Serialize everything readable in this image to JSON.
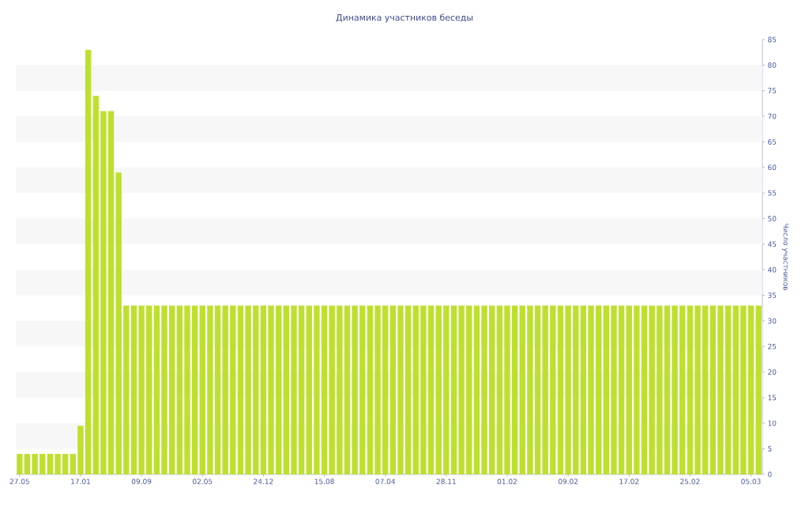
{
  "chart_data": {
    "type": "bar",
    "title": "Динамика участников беседы",
    "ylabel": "Число участников",
    "categories": [
      "27.05",
      null,
      null,
      null,
      null,
      null,
      null,
      null,
      "17.01",
      null,
      null,
      null,
      null,
      null,
      null,
      null,
      "09.09",
      null,
      null,
      null,
      null,
      null,
      null,
      null,
      "02.05",
      null,
      null,
      null,
      null,
      null,
      null,
      null,
      "24.12",
      null,
      null,
      null,
      null,
      null,
      null,
      null,
      "15.08",
      null,
      null,
      null,
      null,
      null,
      null,
      null,
      "07.04",
      null,
      null,
      null,
      null,
      null,
      null,
      null,
      "28.11",
      null,
      null,
      null,
      null,
      null,
      null,
      null,
      "01.02",
      null,
      null,
      null,
      null,
      null,
      null,
      null,
      "09.02",
      null,
      null,
      null,
      null,
      null,
      null,
      null,
      "17.02",
      null,
      null,
      null,
      null,
      null,
      null,
      null,
      "25.02",
      null,
      null,
      null,
      null,
      null,
      null,
      null,
      "05.03",
      null
    ],
    "values": [
      4,
      4,
      4,
      4,
      4,
      4,
      4,
      4,
      9.5,
      83,
      74,
      71,
      71,
      59,
      33,
      33,
      33,
      33,
      33,
      33,
      33,
      33,
      33,
      33,
      33,
      33,
      33,
      33,
      33,
      33,
      33,
      33,
      33,
      33,
      33,
      33,
      33,
      33,
      33,
      33,
      33,
      33,
      33,
      33,
      33,
      33,
      33,
      33,
      33,
      33,
      33,
      33,
      33,
      33,
      33,
      33,
      33,
      33,
      33,
      33,
      33,
      33,
      33,
      33,
      33,
      33,
      33,
      33,
      33,
      33,
      33,
      33,
      33,
      33,
      33,
      33,
      33,
      33,
      33,
      33,
      33,
      33,
      33,
      33,
      33,
      33,
      33,
      33,
      33,
      33,
      33,
      33,
      33,
      33,
      33,
      33,
      33,
      33
    ],
    "color": "#bde02e",
    "ylim": [
      0,
      85
    ],
    "yticks": [
      0,
      5,
      10,
      15,
      20,
      25,
      30,
      35,
      40,
      45,
      50,
      55,
      60,
      65,
      70,
      75,
      80,
      85
    ]
  }
}
